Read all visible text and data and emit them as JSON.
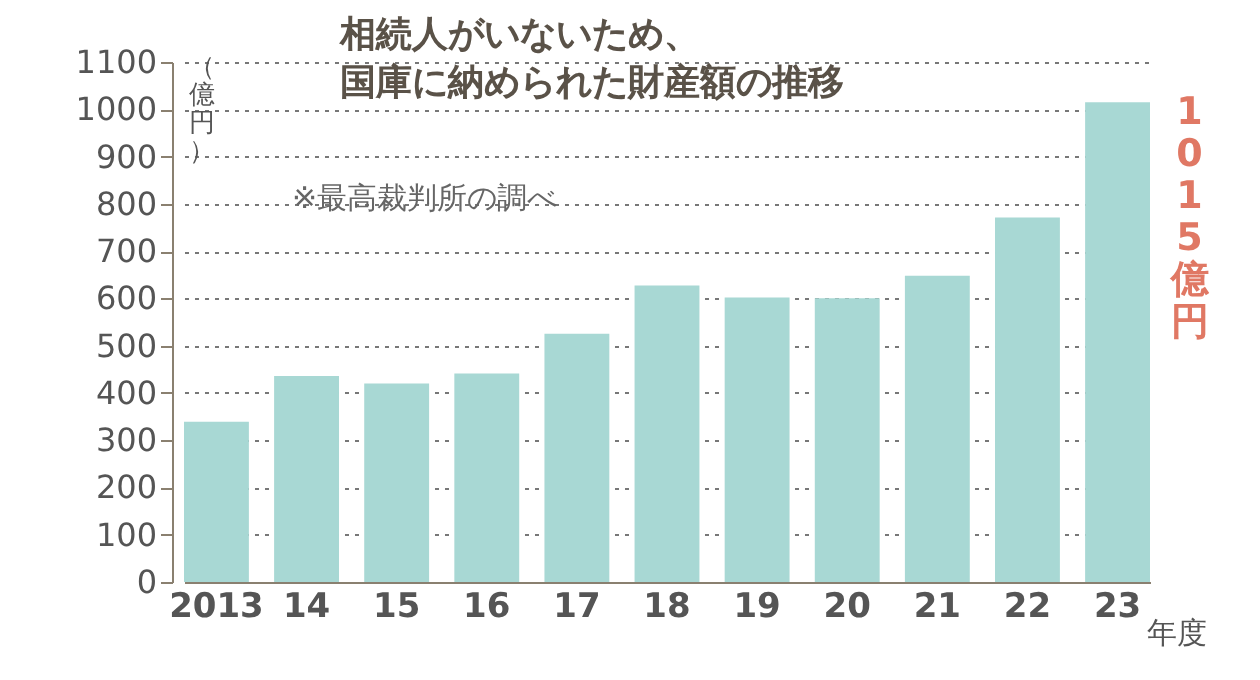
{
  "chart_data": {
    "type": "bar",
    "title": "相続人がいないため、国庫に納められた財産額の推移",
    "xlabel": "年度",
    "ylabel": "（億円）",
    "categories": [
      "2013",
      "14",
      "15",
      "16",
      "17",
      "18",
      "19",
      "20",
      "21",
      "22",
      "23"
    ],
    "values": [
      339,
      436,
      420,
      441,
      525,
      627,
      602,
      600,
      648,
      771,
      1015
    ],
    "color": "#a8d8d4",
    "ylim": [
      0,
      1100
    ],
    "yticks": [
      0,
      100,
      200,
      300,
      400,
      500,
      600,
      700,
      800,
      900,
      1000,
      1100
    ],
    "grid": "y",
    "annotations": [
      "※最高裁判所の調べ",
      {
        "text": "1015億円",
        "x": "23",
        "y": 1015
      }
    ]
  }
}
